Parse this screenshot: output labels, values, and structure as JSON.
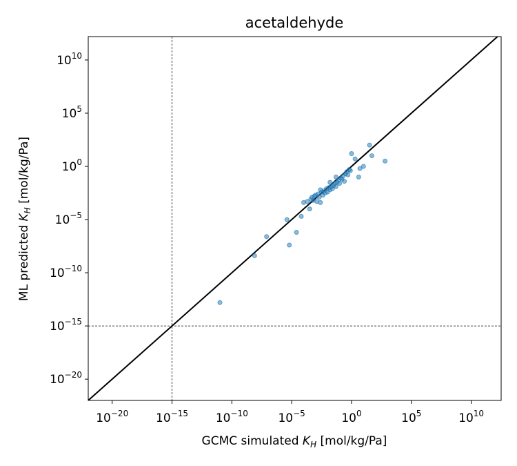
{
  "chart_data": {
    "type": "scatter",
    "title": "acetaldehyde",
    "xlabel": {
      "prefix": "GCMC simulated ",
      "symbol": "K",
      "sub": "H",
      "suffix": " [mol/kg/Pa]"
    },
    "ylabel": {
      "prefix": "ML predicted ",
      "symbol": "K",
      "sub": "H",
      "suffix": " [mol/kg/Pa]"
    },
    "scale": "log10",
    "xlim_exp": [
      -22,
      12.5
    ],
    "ylim_exp": [
      -22,
      12.2
    ],
    "ticks_exp": [
      -20,
      -15,
      -10,
      -5,
      0,
      5,
      10
    ],
    "tick_labels": [
      {
        "base": "10",
        "exp": "−20"
      },
      {
        "base": "10",
        "exp": "−15"
      },
      {
        "base": "10",
        "exp": "−10"
      },
      {
        "base": "10",
        "exp": "−5"
      },
      {
        "base": "10",
        "exp": "0"
      },
      {
        "base": "10",
        "exp": "5"
      },
      {
        "base": "10",
        "exp": "10"
      }
    ],
    "reference_lines": {
      "vertical_x_exp": -15,
      "horizontal_y_exp": -15,
      "style": "dashed"
    },
    "parity_line": true,
    "colors": {
      "points": "#1f77b4",
      "parity": "#000000",
      "guides": "#000000"
    },
    "points_exp": [
      [
        -11,
        -12.8
      ],
      [
        -8.1,
        -8.4
      ],
      [
        -7.1,
        -6.6
      ],
      [
        -5.4,
        -5.0
      ],
      [
        -5.2,
        -7.4
      ],
      [
        -4.6,
        -6.2
      ],
      [
        -4.2,
        -4.7
      ],
      [
        -4.0,
        -3.4
      ],
      [
        -3.7,
        -3.3
      ],
      [
        -3.5,
        -4.0
      ],
      [
        -3.4,
        -3.1
      ],
      [
        -3.2,
        -3.2
      ],
      [
        -3.1,
        -2.8
      ],
      [
        -3.0,
        -2.7
      ],
      [
        -2.9,
        -3.3
      ],
      [
        -2.8,
        -2.6
      ],
      [
        -2.7,
        -2.9
      ],
      [
        -2.6,
        -3.4
      ],
      [
        -2.5,
        -2.4
      ],
      [
        -2.4,
        -2.7
      ],
      [
        -2.3,
        -2.3
      ],
      [
        -2.2,
        -2.5
      ],
      [
        -2.1,
        -2.1
      ],
      [
        -2.0,
        -2.4
      ],
      [
        -1.9,
        -2.0
      ],
      [
        -1.8,
        -2.2
      ],
      [
        -1.7,
        -1.9
      ],
      [
        -1.6,
        -2.1
      ],
      [
        -1.5,
        -1.8
      ],
      [
        -1.4,
        -1.6
      ],
      [
        -1.3,
        -1.9
      ],
      [
        -1.2,
        -1.5
      ],
      [
        -1.1,
        -1.3
      ],
      [
        -1.0,
        -1.6
      ],
      [
        -0.9,
        -1.1
      ],
      [
        -0.8,
        -1.2
      ],
      [
        -0.7,
        -0.9
      ],
      [
        -0.6,
        -1.4
      ],
      [
        -0.5,
        -0.7
      ],
      [
        -0.4,
        -0.5
      ],
      [
        -0.3,
        -0.8
      ],
      [
        -0.2,
        -0.3
      ],
      [
        0.0,
        1.2
      ],
      [
        0.3,
        0.7
      ],
      [
        0.6,
        -1.0
      ],
      [
        0.7,
        -0.2
      ],
      [
        1.0,
        0.0
      ],
      [
        1.5,
        2.0
      ],
      [
        1.7,
        1.0
      ],
      [
        2.8,
        0.5
      ],
      [
        -0.1,
        -0.4
      ],
      [
        -1.8,
        -1.5
      ],
      [
        -2.6,
        -2.2
      ],
      [
        -3.3,
        -2.9
      ],
      [
        -1.3,
        -1.0
      ]
    ]
  }
}
